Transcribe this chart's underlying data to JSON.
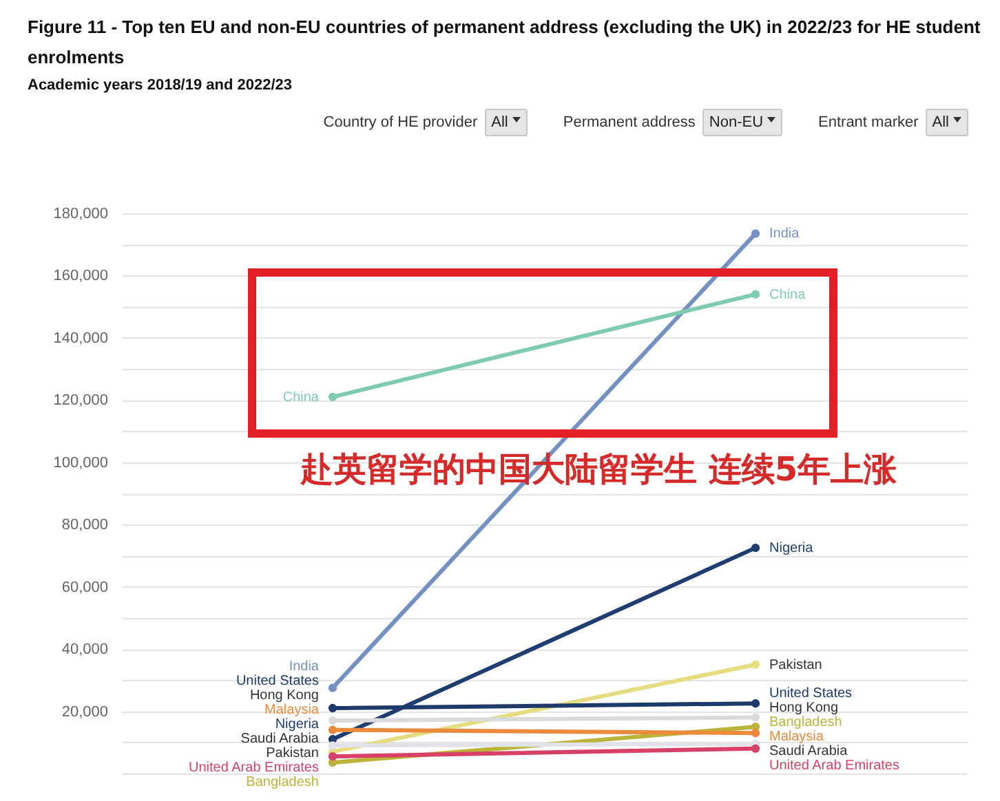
{
  "chart_data": {
    "type": "line",
    "title": "Figure 11 - Top ten EU and non-EU countries of permanent address (excluding the UK) in 2022/23 for HE student enrolments",
    "subtitle": "Academic years 2018/19 and 2022/23",
    "annotations": [
      "Country of HE provider",
      "All",
      "Permanent address",
      "Non-EU",
      "Entrant marker",
      "All",
      "赴英留学的中国大陆留学生 连续5年上涨"
    ],
    "categories": [
      null,
      null
    ],
    "series": [
      {
        "name": "India",
        "color": "#7391c2",
        "values": [
          27500,
          173500
        ]
      },
      {
        "name": "China",
        "color": "#7fcbb1",
        "values": [
          121000,
          154000
        ]
      },
      {
        "name": "Nigeria",
        "color": "#1f3d70",
        "values": [
          11000,
          72500
        ]
      },
      {
        "name": "Pakistan",
        "color": "#e6dc80",
        "values": [
          7000,
          35000
        ]
      },
      {
        "name": "United States",
        "color": "#1e3a6a",
        "values": [
          21000,
          22500
        ]
      },
      {
        "name": "Hong Kong",
        "color": "#dadada",
        "values": [
          17000,
          18000
        ]
      },
      {
        "name": "Bangladesh",
        "color": "#bcb438",
        "values": [
          3500,
          15000
        ]
      },
      {
        "name": "Malaysia",
        "color": "#ec8a3c",
        "values": [
          14000,
          13000
        ]
      },
      {
        "name": "Saudi Arabia",
        "color": "#e2e2ea",
        "values": [
          9000,
          9500
        ]
      },
      {
        "name": "United Arab Emirates",
        "color": "#d84068",
        "values": [
          5500,
          8000
        ]
      }
    ],
    "ylim": [
      0,
      180000
    ],
    "yticks": [
      {
        "value": 0,
        "label": null
      },
      {
        "value": 10000,
        "label": null
      },
      {
        "value": 20000,
        "label": "20,000"
      },
      {
        "value": 30000,
        "label": null
      },
      {
        "value": 40000,
        "label": "40,000"
      },
      {
        "value": 50000,
        "label": null
      },
      {
        "value": 60000,
        "label": "60,000"
      },
      {
        "value": 70000,
        "label": null
      },
      {
        "value": 80000,
        "label": "80,000"
      },
      {
        "value": 90000,
        "label": null
      },
      {
        "value": 100000,
        "label": "100,000"
      },
      {
        "value": 110000,
        "label": null
      },
      {
        "value": 120000,
        "label": "120,000"
      },
      {
        "value": 130000,
        "label": null
      },
      {
        "value": 140000,
        "label": "140,000"
      },
      {
        "value": 150000,
        "label": null
      },
      {
        "value": 160000,
        "label": "160,000"
      },
      {
        "value": 170000,
        "label": null
      },
      {
        "value": 180000,
        "label": "180,000"
      }
    ],
    "grid": "y",
    "marker": "circle",
    "line_style": "solid",
    "tick_labels": "y"
  }
}
